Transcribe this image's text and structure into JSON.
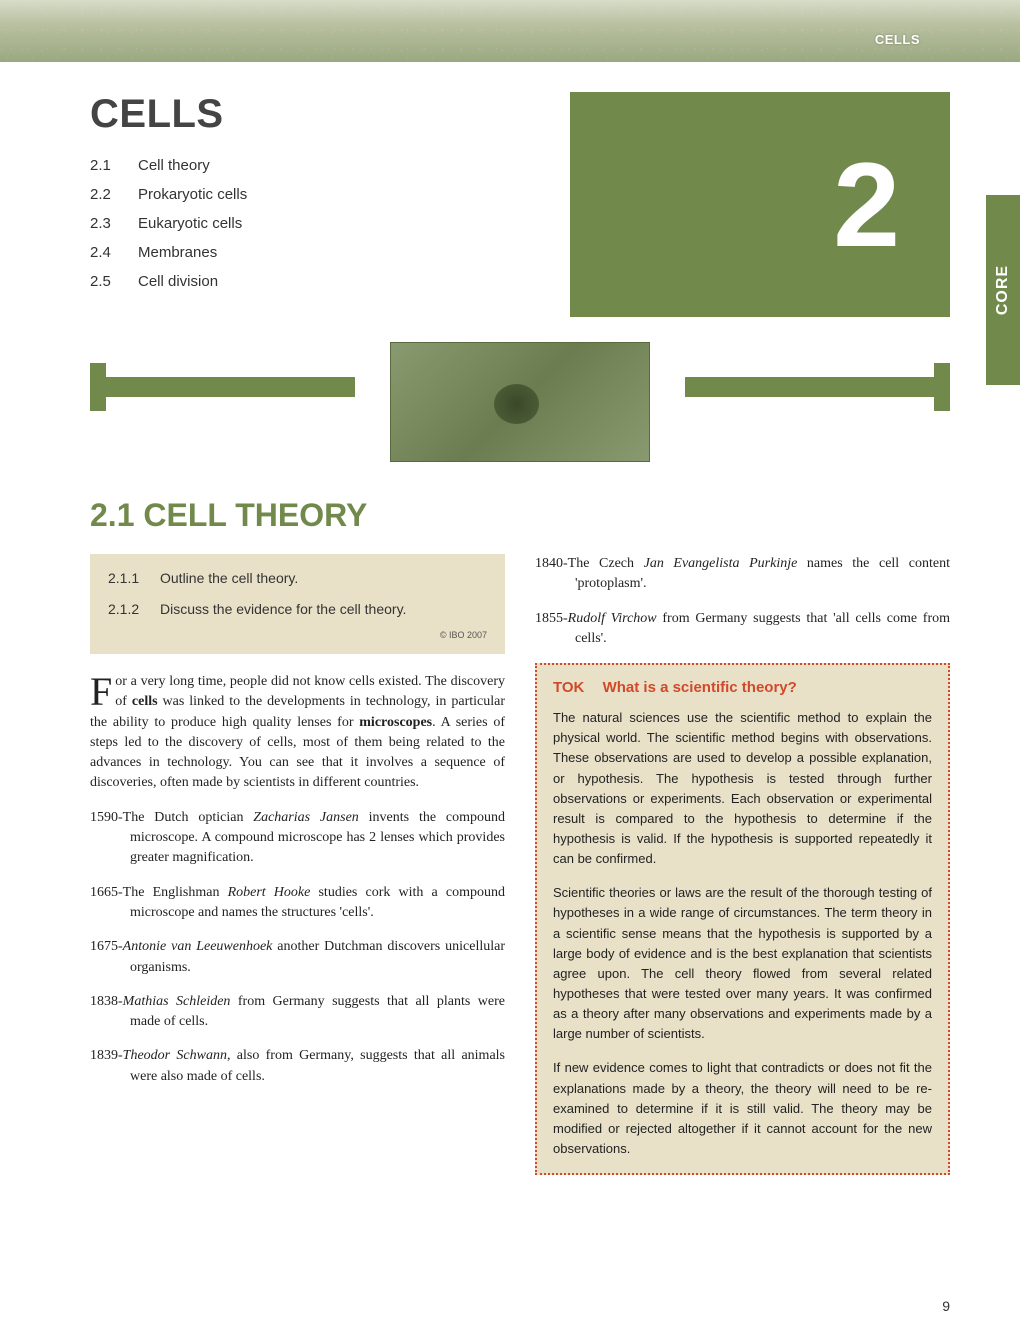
{
  "header": {
    "top_label": "CELLS",
    "banner_gradient": [
      "#d8dcc8",
      "#b8c0a0",
      "#9aa880"
    ]
  },
  "chapter": {
    "title": "CELLS",
    "number": "2",
    "box_color": "#718a4c",
    "side_tab": "CORE",
    "toc": [
      {
        "num": "2.1",
        "label": "Cell theory"
      },
      {
        "num": "2.2",
        "label": "Prokaryotic cells"
      },
      {
        "num": "2.3",
        "label": "Eukaryotic cells"
      },
      {
        "num": "2.4",
        "label": "Membranes"
      },
      {
        "num": "2.5",
        "label": "Cell division"
      }
    ]
  },
  "section": {
    "heading": "2.1 CELL THEORY",
    "heading_color": "#718a4c"
  },
  "objectives": {
    "box_bg": "#e8e1c8",
    "items": [
      {
        "num": "2.1.1",
        "text": "Outline the cell theory."
      },
      {
        "num": "2.1.2",
        "text": "Discuss the evidence for the cell theory."
      }
    ],
    "copyright": "© IBO 2007"
  },
  "intro_para": "For a very long time, people did not know cells existed. The discovery of cells was linked to the developments in technology, in particular the ability to produce high quality lenses for microscopes. A series of steps led to the discovery of cells, most of them being related to the advances in technology. You can see that it involves a sequence of discoveries, often made by scientists in different countries.",
  "timeline_left": [
    {
      "year": "1590",
      "text": "The Dutch optician Zacharias Jansen invents the compound microscope. A compound microscope has 2 lenses which provides greater magnification.",
      "em_start": 19,
      "em_end": 35
    },
    {
      "year": "1665",
      "text": "The Englishman Robert Hooke studies cork with a compound microscope and names the structures 'cells'."
    },
    {
      "year": "1675",
      "text": "Antonie van Leeuwenhoek another Dutchman discovers unicellular organisms."
    },
    {
      "year": "1838",
      "text": "Mathias Schleiden from Germany suggests that all plants were made of cells."
    },
    {
      "year": "1839",
      "text": "Theodor Schwann, also from Germany, suggests that all animals were also made of cells."
    }
  ],
  "timeline_right": [
    {
      "year": "1840",
      "text": "The Czech Jan Evangelista Purkinje names the cell content 'protoplasm'."
    },
    {
      "year": "1855",
      "text": "Rudolf Virchow from Germany suggests that 'all cells come from cells'."
    }
  ],
  "tok": {
    "label": "TOK",
    "title": "What is a scientific theory?",
    "border_color": "#d04a2a",
    "bg_color": "#e8e1c8",
    "paragraphs": [
      "The natural sciences use the scientific method to explain the physical world. The scientific method begins with observations. These observations are used to develop a possible explanation, or hypothesis. The hypothesis is tested through further observations or experiments. Each observation or experimental result is compared to the hypothesis to determine if the hypothesis is valid. If the hypothesis is supported repeatedly it can be confirmed.",
      "Scientific theories or laws are the result of the thorough testing of hypotheses in a wide range of circumstances. The term theory in a scientific sense means that the hypothesis is supported by a large body of evidence and is the best explanation that scientists agree upon. The cell theory flowed from several related hypotheses that were tested over many years. It was confirmed as a theory after many observations and experiments made by a large number of scientists.",
      "If new evidence comes to light that contradicts or does not fit the explanations made by a theory, the theory will need to be re-examined to determine if it is still valid. The theory may be modified or rejected altogether if it cannot account for the new observations."
    ]
  },
  "page_number": "9"
}
